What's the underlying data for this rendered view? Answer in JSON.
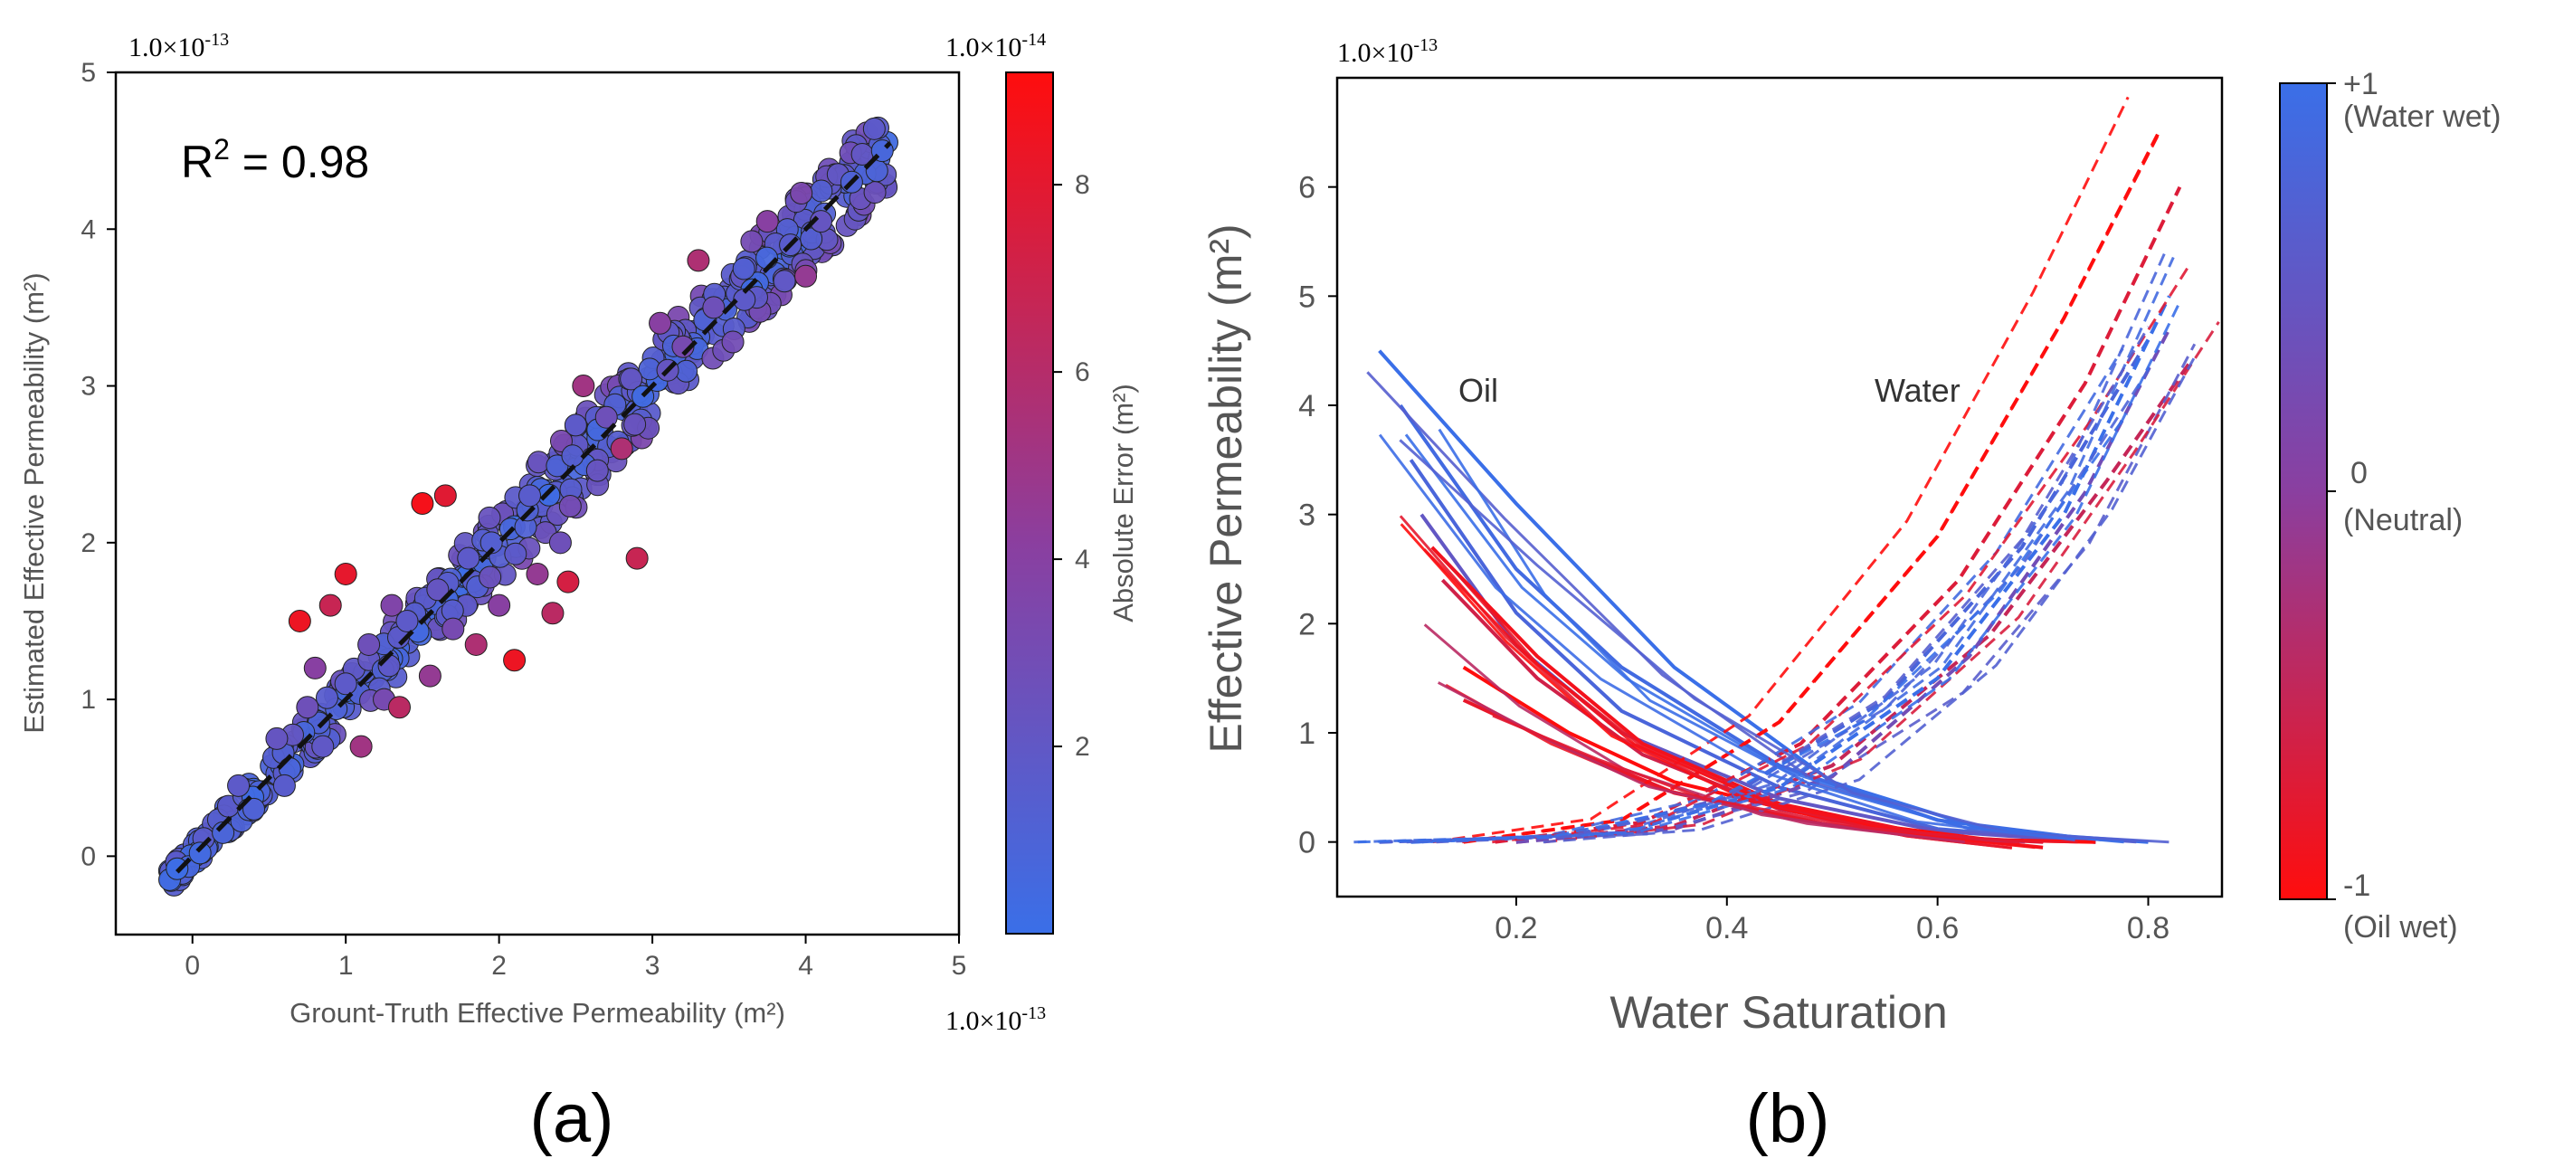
{
  "chart_data": [
    {
      "panel": "a",
      "type": "scatter",
      "panel_label": "(a)",
      "xlabel": "Grount-Truth Effective Permeability (m²)",
      "ylabel": "Estimated Effective Permeability (m²)",
      "x_scale_note": "1.0×10",
      "x_scale_exp": "-13",
      "y_scale_note": "1.0×10",
      "y_scale_exp": "-13",
      "xlim": [
        -0.5,
        5
      ],
      "ylim": [
        -0.5,
        5
      ],
      "xticks": [
        0,
        1,
        2,
        3,
        4,
        5
      ],
      "yticks": [
        0,
        1,
        2,
        3,
        4,
        5
      ],
      "annotation_base": "R",
      "annotation_sup": "2",
      "annotation_rest": " = 0.98",
      "reference_line": "y = x (dashed, black)",
      "colorbar": {
        "label": "Absolute Error (m²)",
        "scale_note": "1.0×10",
        "scale_exp": "-14",
        "range": [
          0,
          9.2
        ],
        "ticks": [
          2,
          4,
          6,
          8
        ],
        "color_low": "#3A6FE8",
        "color_mid": "#8A3FA0",
        "color_high": "#FF0D0D"
      },
      "points": [
        {
          "x": -0.1,
          "y": -0.08,
          "err": 0.2
        },
        {
          "x": 0.05,
          "y": 0.02,
          "err": 0.5
        },
        {
          "x": 0.2,
          "y": 0.15,
          "err": 1.0
        },
        {
          "x": 0.3,
          "y": 0.45,
          "err": 2.0
        },
        {
          "x": 0.4,
          "y": 0.3,
          "err": 1.2
        },
        {
          "x": 0.55,
          "y": 0.75,
          "err": 2.5
        },
        {
          "x": 0.6,
          "y": 0.45,
          "err": 1.8
        },
        {
          "x": 0.7,
          "y": 1.5,
          "err": 8.5
        },
        {
          "x": 0.75,
          "y": 0.95,
          "err": 3.0
        },
        {
          "x": 0.8,
          "y": 1.2,
          "err": 4.5
        },
        {
          "x": 0.85,
          "y": 0.7,
          "err": 2.2
        },
        {
          "x": 0.9,
          "y": 1.6,
          "err": 7.0
        },
        {
          "x": 1.0,
          "y": 1.8,
          "err": 8.2
        },
        {
          "x": 1.0,
          "y": 1.1,
          "err": 2.0
        },
        {
          "x": 1.1,
          "y": 0.7,
          "err": 5.5
        },
        {
          "x": 1.15,
          "y": 1.35,
          "err": 3.0
        },
        {
          "x": 1.25,
          "y": 1.0,
          "err": 3.5
        },
        {
          "x": 1.3,
          "y": 1.6,
          "err": 4.0
        },
        {
          "x": 1.35,
          "y": 0.95,
          "err": 6.5
        },
        {
          "x": 1.4,
          "y": 1.5,
          "err": 2.0
        },
        {
          "x": 1.5,
          "y": 2.25,
          "err": 8.8
        },
        {
          "x": 1.55,
          "y": 1.15,
          "err": 5.0
        },
        {
          "x": 1.6,
          "y": 1.7,
          "err": 2.5
        },
        {
          "x": 1.65,
          "y": 2.3,
          "err": 8.0
        },
        {
          "x": 1.7,
          "y": 1.45,
          "err": 3.5
        },
        {
          "x": 1.8,
          "y": 1.9,
          "err": 2.0
        },
        {
          "x": 1.85,
          "y": 1.35,
          "err": 6.0
        },
        {
          "x": 1.95,
          "y": 2.0,
          "err": 1.5
        },
        {
          "x": 2.0,
          "y": 1.6,
          "err": 4.5
        },
        {
          "x": 2.1,
          "y": 1.25,
          "err": 8.5
        },
        {
          "x": 2.2,
          "y": 2.3,
          "err": 1.8
        },
        {
          "x": 2.25,
          "y": 1.8,
          "err": 5.0
        },
        {
          "x": 2.35,
          "y": 1.55,
          "err": 6.5
        },
        {
          "x": 2.45,
          "y": 1.75,
          "err": 7.5
        },
        {
          "x": 2.4,
          "y": 2.0,
          "err": 3.0
        },
        {
          "x": 2.5,
          "y": 2.75,
          "err": 2.0
        },
        {
          "x": 2.55,
          "y": 3.0,
          "err": 5.5
        },
        {
          "x": 2.7,
          "y": 2.8,
          "err": 3.0
        },
        {
          "x": 2.8,
          "y": 2.6,
          "err": 6.0
        },
        {
          "x": 2.9,
          "y": 1.9,
          "err": 7.0
        },
        {
          "x": 3.05,
          "y": 3.4,
          "err": 4.5
        },
        {
          "x": 3.1,
          "y": 3.1,
          "err": 2.5
        },
        {
          "x": 3.2,
          "y": 3.25,
          "err": 3.5
        },
        {
          "x": 3.3,
          "y": 3.8,
          "err": 6.0
        },
        {
          "x": 3.4,
          "y": 3.5,
          "err": 3.0
        },
        {
          "x": 3.6,
          "y": 3.55,
          "err": 2.0
        },
        {
          "x": 3.75,
          "y": 4.05,
          "err": 4.5
        },
        {
          "x": 3.9,
          "y": 3.9,
          "err": 1.8
        },
        {
          "x": 4.0,
          "y": 3.7,
          "err": 5.0
        },
        {
          "x": 4.1,
          "y": 4.05,
          "err": 2.5
        },
        {
          "x": 4.3,
          "y": 4.3,
          "err": 1.2
        },
        {
          "x": 4.5,
          "y": 4.5,
          "err": 0.8
        }
      ]
    },
    {
      "panel": "b",
      "type": "line",
      "panel_label": "(b)",
      "xlabel": "Water Saturation",
      "ylabel": "Effective Permeability (m²)",
      "y_scale_note": "1.0×10",
      "y_scale_exp": "-13",
      "xlim": [
        0.03,
        0.87
      ],
      "ylim": [
        -0.5,
        7.0
      ],
      "xticks": [
        0.2,
        0.4,
        0.6,
        0.8
      ],
      "yticks": [
        0,
        1,
        2,
        3,
        4,
        5,
        6
      ],
      "annotations": [
        "Oil",
        "Water"
      ],
      "colorbar": {
        "top_label": "+1",
        "top_desc": "(Water wet)",
        "mid_label": "0",
        "mid_desc": "(Neutral)",
        "bottom_label": "-1",
        "bottom_desc": "(Oil wet)",
        "color_low": "#FF0D0D",
        "color_mid": "#8A3FA0",
        "color_high": "#3A6FE8"
      },
      "series": [
        {
          "name": "oil",
          "wettability": 1.0,
          "x": [
            0.07,
            0.2,
            0.35,
            0.5,
            0.65,
            0.8
          ],
          "y": [
            4.5,
            3.1,
            1.6,
            0.55,
            0.1,
            0.0
          ]
        },
        {
          "name": "oil",
          "wettability": 0.9,
          "x": [
            0.09,
            0.2,
            0.3,
            0.45,
            0.6,
            0.75
          ],
          "y": [
            4.0,
            2.5,
            1.6,
            0.7,
            0.2,
            0.02
          ]
        },
        {
          "name": "oil",
          "wettability": 0.8,
          "x": [
            0.1,
            0.2,
            0.3,
            0.45,
            0.6,
            0.75
          ],
          "y": [
            3.5,
            2.1,
            1.2,
            0.5,
            0.12,
            0.0
          ]
        },
        {
          "name": "oil",
          "wettability": 0.5,
          "x": [
            0.11,
            0.2,
            0.3,
            0.45,
            0.6,
            0.75
          ],
          "y": [
            3.0,
            1.8,
            1.0,
            0.4,
            0.1,
            0.0
          ]
        },
        {
          "name": "oil",
          "wettability": -0.9,
          "x": [
            0.12,
            0.22,
            0.32,
            0.45,
            0.6,
            0.7
          ],
          "y": [
            2.7,
            1.7,
            0.9,
            0.35,
            0.05,
            -0.05
          ]
        },
        {
          "name": "oil",
          "wettability": -0.6,
          "x": [
            0.13,
            0.22,
            0.32,
            0.45,
            0.6,
            0.7
          ],
          "y": [
            2.4,
            1.5,
            0.8,
            0.3,
            0.05,
            0.0
          ]
        },
        {
          "name": "oil",
          "wettability": -1.0,
          "x": [
            0.15,
            0.25,
            0.35,
            0.5,
            0.65,
            0.75
          ],
          "y": [
            1.6,
            1.0,
            0.55,
            0.2,
            0.02,
            0.0
          ]
        },
        {
          "name": "oil",
          "wettability": -0.8,
          "x": [
            0.15,
            0.25,
            0.35,
            0.5,
            0.65
          ],
          "y": [
            1.3,
            0.85,
            0.45,
            0.15,
            0.0
          ]
        },
        {
          "name": "water",
          "wettability": -1.0,
          "x": [
            0.15,
            0.3,
            0.45,
            0.6,
            0.72,
            0.81
          ],
          "y": [
            0.0,
            0.2,
            1.1,
            2.8,
            4.8,
            6.5
          ]
        },
        {
          "name": "water",
          "wettability": -0.7,
          "x": [
            0.18,
            0.32,
            0.47,
            0.62,
            0.74,
            0.83
          ],
          "y": [
            0.0,
            0.18,
            0.9,
            2.4,
            4.2,
            6.0
          ]
        },
        {
          "name": "water",
          "wettability": -0.5,
          "x": [
            0.2,
            0.35,
            0.5,
            0.65,
            0.76,
            0.84
          ],
          "y": [
            0.0,
            0.15,
            0.7,
            1.9,
            3.3,
            4.4
          ]
        },
        {
          "name": "water",
          "wettability": 0.3,
          "x": [
            0.2,
            0.35,
            0.5,
            0.63,
            0.74,
            0.82
          ],
          "y": [
            0.0,
            0.12,
            0.6,
            1.7,
            3.2,
            4.7
          ]
        },
        {
          "name": "water",
          "wettability": 0.8,
          "x": [
            0.07,
            0.25,
            0.4,
            0.55,
            0.68,
            0.8
          ],
          "y": [
            0.0,
            0.05,
            0.4,
            1.3,
            2.7,
            4.6
          ]
        },
        {
          "name": "water",
          "wettability": 1.0,
          "x": [
            0.1,
            0.3,
            0.45,
            0.6,
            0.72,
            0.82
          ],
          "y": [
            0.0,
            0.08,
            0.5,
            1.5,
            3.0,
            5.0
          ]
        }
      ]
    }
  ]
}
